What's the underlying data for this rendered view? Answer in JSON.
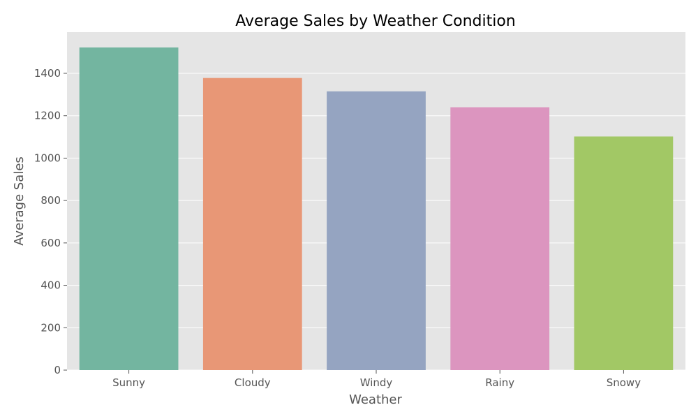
{
  "chart_data": {
    "type": "bar",
    "title": "Average Sales by Weather Condition",
    "xlabel": "Weather",
    "ylabel": "Average Sales",
    "categories": [
      "Sunny",
      "Cloudy",
      "Windy",
      "Rainy",
      "Snowy"
    ],
    "values": [
      1522,
      1378,
      1315,
      1240,
      1102
    ],
    "ylim": [
      0,
      1600
    ],
    "yticks": [
      0,
      200,
      400,
      600,
      800,
      1000,
      1200,
      1400
    ],
    "ytick_labels": [
      "0",
      "200",
      "400",
      "600",
      "800",
      "1000",
      "1200",
      "1400"
    ],
    "colors": [
      "#73b5a0",
      "#e89776",
      "#95a4c1",
      "#dc95bf",
      "#a2c865"
    ],
    "background_color": "#e5e5e5",
    "grid": true,
    "legend": "none"
  }
}
